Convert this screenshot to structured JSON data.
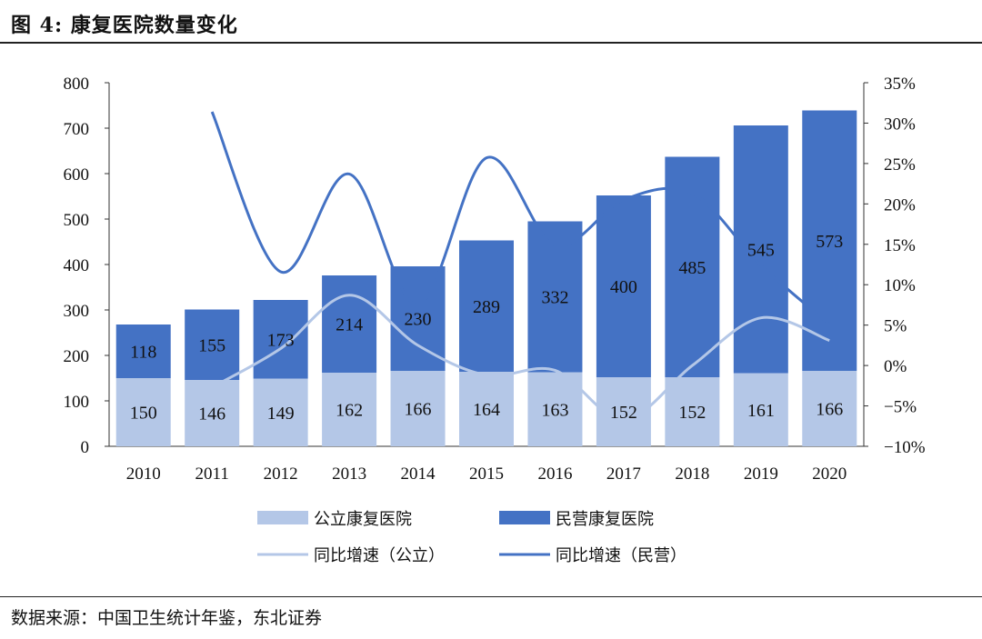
{
  "figure": {
    "title": "图 4: 康复医院数量变化",
    "source": "数据来源：中国卫生统计年鉴，东北证券"
  },
  "colors": {
    "public_bar": "#b4c7e7",
    "private_bar": "#4472c4",
    "public_line": "#b4c7e7",
    "private_line": "#4472c4"
  },
  "chart_data": {
    "type": "bar",
    "stacked": true,
    "categories": [
      "2010",
      "2011",
      "2012",
      "2013",
      "2014",
      "2015",
      "2016",
      "2017",
      "2018",
      "2019",
      "2020"
    ],
    "series": [
      {
        "name": "公立康复医院",
        "type": "bar",
        "axis": "left",
        "values": [
          150,
          146,
          149,
          162,
          166,
          164,
          163,
          152,
          152,
          161,
          166
        ]
      },
      {
        "name": "民营康复医院",
        "type": "bar",
        "axis": "left",
        "values": [
          118,
          155,
          173,
          214,
          230,
          289,
          332,
          400,
          485,
          545,
          573
        ]
      },
      {
        "name": "同比增速（公立）",
        "type": "line",
        "axis": "right",
        "smooth": true,
        "values": [
          null,
          -2.7,
          2.1,
          8.7,
          2.5,
          -1.2,
          -0.6,
          -6.7,
          0.0,
          5.9,
          3.1
        ]
      },
      {
        "name": "同比增速（民营）",
        "type": "line",
        "axis": "right",
        "smooth": true,
        "values": [
          null,
          31.4,
          11.6,
          23.7,
          7.5,
          25.7,
          14.9,
          20.5,
          21.3,
          12.4,
          5.1
        ]
      }
    ],
    "y_left": {
      "min": 0,
      "max": 800,
      "step": 100,
      "tick_labels": [
        "0",
        "100",
        "200",
        "300",
        "400",
        "500",
        "600",
        "700",
        "800"
      ]
    },
    "y_right": {
      "min": -10,
      "max": 35,
      "step": 5,
      "tick_labels": [
        "−10%",
        "−5%",
        "0%",
        "5%",
        "10%",
        "15%",
        "20%",
        "25%",
        "30%",
        "35%"
      ]
    },
    "grid": false,
    "legend_position": "bottom"
  }
}
